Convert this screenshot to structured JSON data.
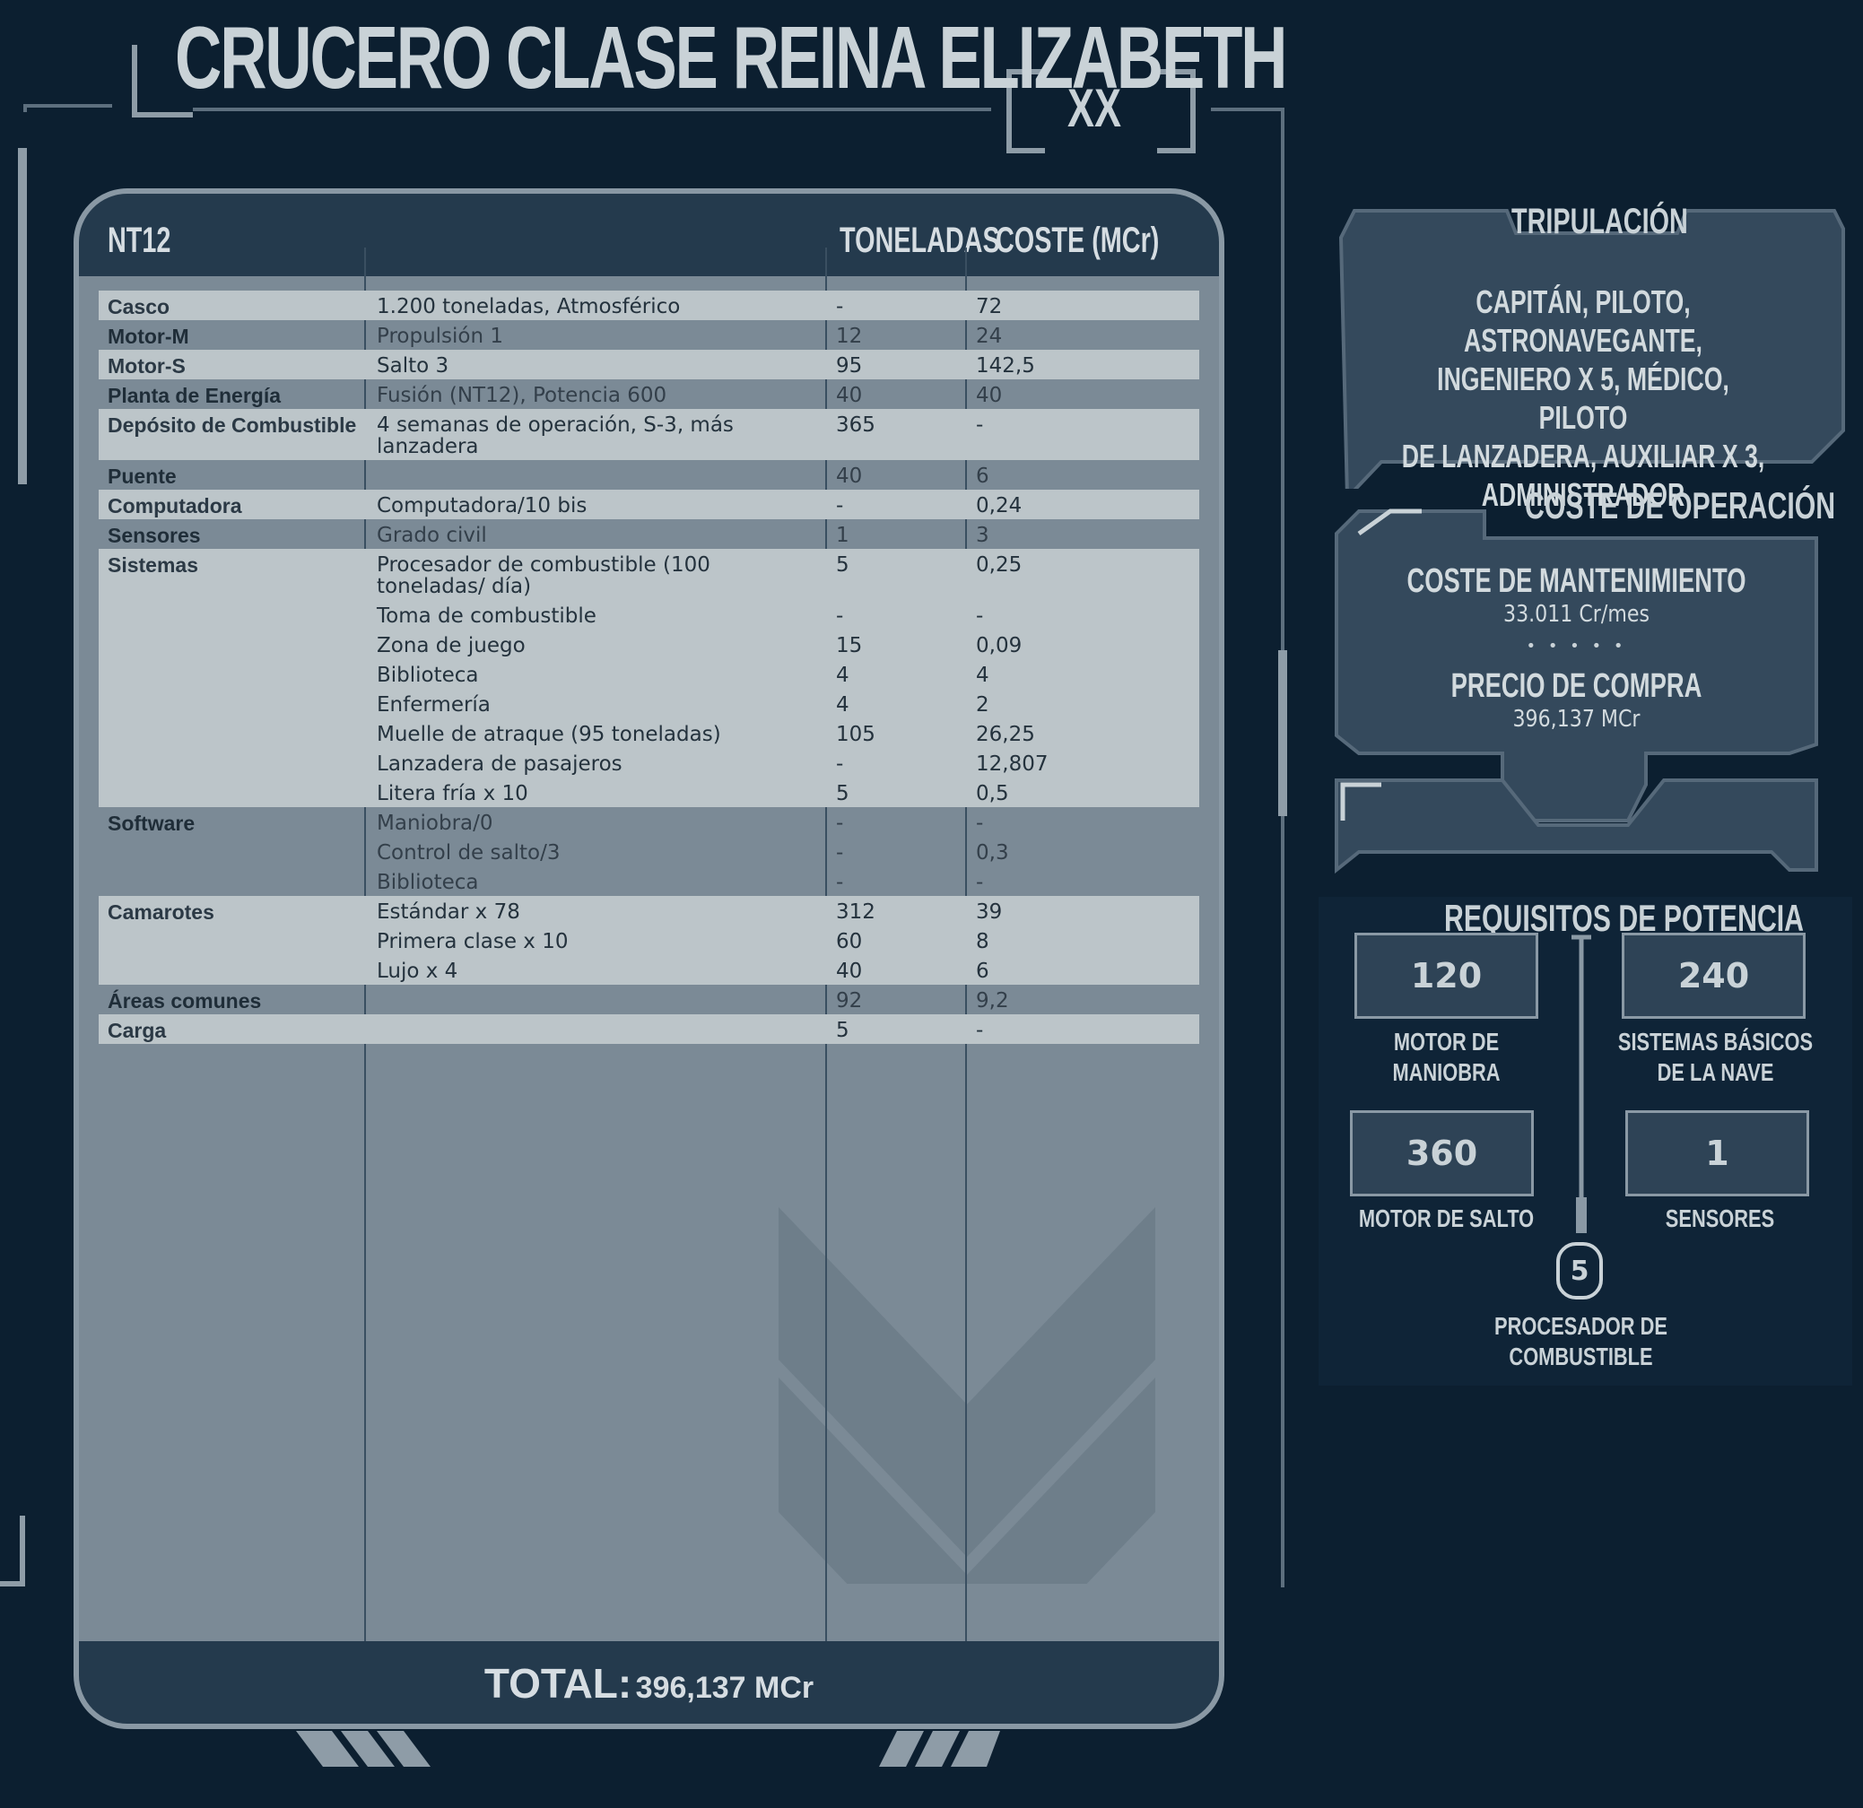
{
  "title": "CRUCERO CLASE REINA ELIZABETH",
  "page_number": "XX",
  "table": {
    "headers": {
      "tech_level": "NT12",
      "tons": "TONELADAS",
      "cost": "COSTE (MCr)"
    },
    "rows": [
      {
        "cat": "Casco",
        "item": "1.200 toneladas, Atmosférico",
        "tons": "-",
        "cost": "72"
      },
      {
        "cat": "Motor-M",
        "item": "Propulsión 1",
        "tons": "12",
        "cost": "24"
      },
      {
        "cat": "Motor-S",
        "item": "Salto 3",
        "tons": "95",
        "cost": "142,5"
      },
      {
        "cat": "Planta de Energía",
        "item": "Fusión (NT12), Potencia 600",
        "tons": "40",
        "cost": "40"
      },
      {
        "cat": "Depósito de Combustible",
        "item": "4 semanas de operación, S-3, más lanzadera",
        "tons": "365",
        "cost": "-"
      },
      {
        "cat": "Puente",
        "item": "",
        "tons": "40",
        "cost": "6"
      },
      {
        "cat": "Computadora",
        "item": "Computadora/10 bis",
        "tons": "-",
        "cost": "0,24"
      },
      {
        "cat": "Sensores",
        "item": "Grado civil",
        "tons": "1",
        "cost": "3"
      },
      {
        "cat": "Sistemas",
        "item": "Procesador de combustible (100 toneladas/ día)",
        "tons": "5",
        "cost": "0,25"
      },
      {
        "cat": "",
        "item": "Toma de combustible",
        "tons": "-",
        "cost": "-"
      },
      {
        "cat": "",
        "item": "Zona de juego",
        "tons": "15",
        "cost": "0,09"
      },
      {
        "cat": "",
        "item": "Biblioteca",
        "tons": "4",
        "cost": "4"
      },
      {
        "cat": "",
        "item": "Enfermería",
        "tons": "4",
        "cost": "2"
      },
      {
        "cat": "",
        "item": "Muelle de atraque (95 toneladas)",
        "tons": "105",
        "cost": "26,25"
      },
      {
        "cat": "",
        "item": "Lanzadera de pasajeros",
        "tons": "-",
        "cost": "12,807"
      },
      {
        "cat": "",
        "item": "Litera fría x 10",
        "tons": "5",
        "cost": "0,5"
      },
      {
        "cat": "Software",
        "item": "Maniobra/0",
        "tons": "-",
        "cost": "-"
      },
      {
        "cat": "",
        "item": "Control de salto/3",
        "tons": "-",
        "cost": "0,3"
      },
      {
        "cat": "",
        "item": "Biblioteca",
        "tons": "-",
        "cost": "-"
      },
      {
        "cat": "Camarotes",
        "item": "Estándar x 78",
        "tons": "312",
        "cost": "39"
      },
      {
        "cat": "",
        "item": "Primera clase x 10",
        "tons": "60",
        "cost": "8"
      },
      {
        "cat": "",
        "item": "Lujo x 4",
        "tons": "40",
        "cost": "6"
      },
      {
        "cat": "Áreas comunes",
        "item": "",
        "tons": "92",
        "cost": "9,2"
      },
      {
        "cat": "Carga",
        "item": "",
        "tons": "5",
        "cost": "-"
      }
    ],
    "total_label": "TOTAL:",
    "total_value": "396,137 MCr"
  },
  "crew": {
    "title": "TRIPULACIÓN",
    "lines": [
      "CAPITÁN, PILOTO, ASTRONAVEGANTE,",
      "INGENIERO X 5, MÉDICO, PILOTO",
      "DE LANZADERA, AUXILIAR X 3,",
      "ADMINISTRADOR"
    ]
  },
  "operating_cost": {
    "title": "COSTE DE OPERACIÓN",
    "maintenance_label": "COSTE DE MANTENIMIENTO",
    "maintenance_value": "33.011 Cr/mes",
    "separator": "• • • • •",
    "purchase_label": "PRECIO DE COMPRA",
    "purchase_value": "396,137 MCr"
  },
  "power": {
    "title": "REQUISITOS DE POTENCIA",
    "items": [
      {
        "value": "120",
        "label_1": "MOTOR DE",
        "label_2": "MANIOBRA"
      },
      {
        "value": "240",
        "label_1": "SISTEMAS BÁSICOS",
        "label_2": "DE LA NAVE"
      },
      {
        "value": "360",
        "label_1": "MOTOR DE SALTO",
        "label_2": ""
      },
      {
        "value": "1",
        "label_1": "SENSORES",
        "label_2": ""
      }
    ],
    "fuel": {
      "value": "5",
      "label_1": "PROCESADOR DE",
      "label_2": "COMBUSTIBLE"
    }
  },
  "colors": {
    "background": "#0c1f30",
    "panel": "#7b8a96",
    "row_light": "#bcc5c9",
    "header": "#243a4d",
    "text_light": "#c9d2d7"
  }
}
